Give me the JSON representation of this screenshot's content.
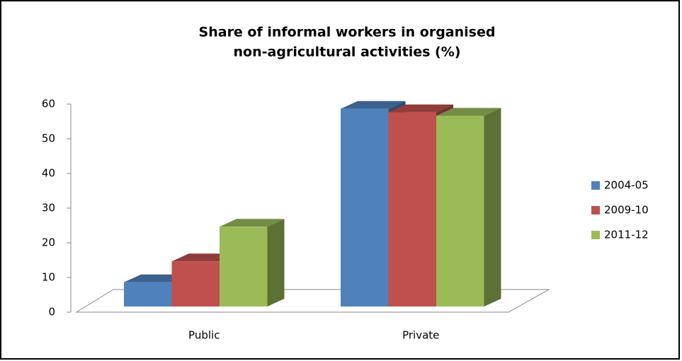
{
  "chart_data": {
    "type": "bar3d",
    "title": "Share of informal workers in organised non-agricultural activities (%)",
    "categories": [
      "Public",
      "Private"
    ],
    "series": [
      {
        "name": "2004-05",
        "color": "#4f81bd",
        "values": [
          7,
          57
        ]
      },
      {
        "name": "2009-10",
        "color": "#c0504d",
        "values": [
          13,
          56
        ]
      },
      {
        "name": "2011-12",
        "color": "#9bbb59",
        "values": [
          23,
          55
        ]
      }
    ],
    "ylim": [
      0,
      60
    ],
    "yticks": [
      0,
      10,
      20,
      30,
      40,
      50,
      60
    ],
    "legend": "right"
  }
}
